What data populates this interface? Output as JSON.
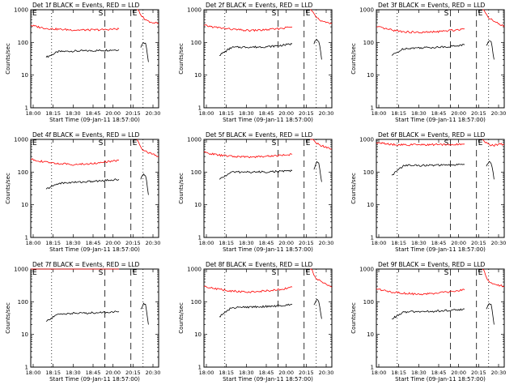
{
  "figure": {
    "xtick_labels": [
      "18:00",
      "18:15",
      "18:30",
      "18:45",
      "20:00",
      "20:15",
      "20:30"
    ],
    "xlabel": "Start Time (09-Jan-11 18:57:00)",
    "ylabel": "Counts/sec",
    "ytick_labels": [
      "1",
      "10",
      "100",
      "1000"
    ],
    "colors": {
      "events": "#000000",
      "lld": "#ff0000"
    }
  },
  "chart_data": [
    {
      "type": "line",
      "title": "Det 1f BLACK = Events, RED = LLD",
      "ylim": [
        1,
        1000
      ],
      "yscale": "log",
      "markers": {
        "E_left": "E",
        "S": "S",
        "E_right": "E"
      },
      "series": [
        {
          "name": "Events",
          "segments": [
            {
              "from": 0.12,
              "to": 0.69,
              "values": [
                35,
                52,
                54,
                55,
                56,
                58,
                60
              ]
            },
            {
              "from": 0.86,
              "to": 0.92,
              "values": [
                70,
                100,
                90,
                25
              ]
            }
          ]
        },
        {
          "name": "LLD",
          "segments": [
            {
              "from": 0.0,
              "to": 0.69,
              "values": [
                330,
                270,
                250,
                240,
                240,
                245,
                260
              ]
            },
            {
              "from": 0.83,
              "to": 1.0,
              "values": [
                1200,
                600,
                450,
                400,
                380
              ]
            }
          ]
        }
      ]
    },
    {
      "type": "line",
      "title": "Det 2f BLACK = Events, RED = LLD",
      "ylim": [
        1,
        1000
      ],
      "yscale": "log",
      "markers": {
        "E_left": "",
        "S": "S",
        "E_right": "E"
      },
      "series": [
        {
          "name": "Events",
          "segments": [
            {
              "from": 0.12,
              "to": 0.69,
              "values": [
                40,
                70,
                72,
                72,
                74,
                80,
                90
              ]
            },
            {
              "from": 0.86,
              "to": 0.92,
              "values": [
                90,
                130,
                110,
                30
              ]
            }
          ]
        },
        {
          "name": "LLD",
          "segments": [
            {
              "from": 0.0,
              "to": 0.69,
              "values": [
                330,
                280,
                250,
                230,
                240,
                260,
                300
              ]
            },
            {
              "from": 0.83,
              "to": 1.0,
              "values": [
                1200,
                600,
                450,
                400,
                380
              ]
            }
          ]
        }
      ]
    },
    {
      "type": "line",
      "title": "Det 3f BLACK = Events, RED = LLD",
      "ylim": [
        1,
        1000
      ],
      "yscale": "log",
      "markers": {
        "E_left": "",
        "S": "S",
        "E_right": "E"
      },
      "series": [
        {
          "name": "Events",
          "segments": [
            {
              "from": 0.12,
              "to": 0.69,
              "values": [
                40,
                65,
                68,
                70,
                72,
                76,
                85
              ]
            },
            {
              "from": 0.86,
              "to": 0.92,
              "values": [
                80,
                120,
                100,
                30
              ]
            }
          ]
        },
        {
          "name": "LLD",
          "segments": [
            {
              "from": 0.0,
              "to": 0.69,
              "values": [
                300,
                240,
                210,
                200,
                210,
                230,
                260
              ]
            },
            {
              "from": 0.83,
              "to": 1.0,
              "values": [
                1200,
                600,
                450,
                380,
                300
              ]
            }
          ]
        }
      ]
    },
    {
      "type": "line",
      "title": "Det 4f BLACK = Events, RED = LLD",
      "ylim": [
        1,
        1000
      ],
      "yscale": "log",
      "markers": {
        "E_left": "E",
        "S": "S",
        "E_right": "E"
      },
      "series": [
        {
          "name": "Events",
          "segments": [
            {
              "from": 0.12,
              "to": 0.69,
              "values": [
                30,
                45,
                48,
                50,
                52,
                56,
                60
              ]
            },
            {
              "from": 0.86,
              "to": 0.92,
              "values": [
                60,
                90,
                80,
                20
              ]
            }
          ]
        },
        {
          "name": "LLD",
          "segments": [
            {
              "from": 0.0,
              "to": 0.69,
              "values": [
                250,
                200,
                180,
                170,
                180,
                200,
                230
              ]
            },
            {
              "from": 0.83,
              "to": 1.0,
              "values": [
                1000,
                500,
                400,
                350,
                300
              ]
            }
          ]
        }
      ]
    },
    {
      "type": "line",
      "title": "Det 5f BLACK = Events, RED = LLD",
      "ylim": [
        1,
        1000
      ],
      "yscale": "log",
      "markers": {
        "E_left": "",
        "S": "S",
        "E_right": "E"
      },
      "series": [
        {
          "name": "Events",
          "segments": [
            {
              "from": 0.12,
              "to": 0.69,
              "values": [
                60,
                100,
                100,
                100,
                102,
                105,
                110
              ]
            },
            {
              "from": 0.86,
              "to": 0.92,
              "values": [
                120,
                200,
                180,
                50
              ]
            }
          ]
        },
        {
          "name": "LLD",
          "segments": [
            {
              "from": 0.0,
              "to": 0.69,
              "values": [
                400,
                330,
                300,
                290,
                300,
                320,
                350
              ]
            },
            {
              "from": 0.83,
              "to": 1.0,
              "values": [
                1200,
                800,
                650,
                580,
                500
              ]
            }
          ]
        }
      ]
    },
    {
      "type": "line",
      "title": "Det 6f BLACK = Events, RED = LLD",
      "ylim": [
        1,
        1000
      ],
      "yscale": "log",
      "markers": {
        "E_left": "",
        "S": "S",
        "E_right": "E"
      },
      "series": [
        {
          "name": "Events",
          "segments": [
            {
              "from": 0.12,
              "to": 0.69,
              "values": [
                80,
                160,
                160,
                160,
                162,
                165,
                170
              ]
            },
            {
              "from": 0.86,
              "to": 0.92,
              "values": [
                150,
                200,
                190,
                60
              ]
            }
          ]
        },
        {
          "name": "LLD",
          "segments": [
            {
              "from": 0.0,
              "to": 0.69,
              "values": [
                800,
                700,
                680,
                680,
                690,
                700,
                720
              ]
            },
            {
              "from": 0.83,
              "to": 1.0,
              "values": [
                1000,
                700,
                650,
                700,
                720
              ]
            }
          ]
        }
      ]
    },
    {
      "type": "line",
      "title": "Det 7f BLACK = Events, RED = LLD",
      "ylim": [
        1,
        1000
      ],
      "yscale": "log",
      "markers": {
        "E_left": "E",
        "S": "S",
        "E_right": "E"
      },
      "series": [
        {
          "name": "Events",
          "segments": [
            {
              "from": 0.12,
              "to": 0.69,
              "values": [
                25,
                42,
                44,
                45,
                46,
                48,
                50
              ]
            },
            {
              "from": 0.86,
              "to": 0.92,
              "values": [
                60,
                85,
                80,
                20
              ]
            }
          ]
        },
        {
          "name": "LLD",
          "segments": [
            {
              "from": 0.0,
              "to": 0.69,
              "values": [
                1150,
                1100,
                1100,
                1100,
                1100,
                1100,
                1100
              ]
            }
          ]
        }
      ]
    },
    {
      "type": "line",
      "title": "Det 8f BLACK = Events, RED = LLD",
      "ylim": [
        1,
        1000
      ],
      "yscale": "log",
      "markers": {
        "E_left": "",
        "S": "S",
        "E_right": "E"
      },
      "series": [
        {
          "name": "Events",
          "segments": [
            {
              "from": 0.12,
              "to": 0.69,
              "values": [
                35,
                65,
                68,
                70,
                72,
                75,
                85
              ]
            },
            {
              "from": 0.86,
              "to": 0.92,
              "values": [
                80,
                120,
                100,
                30
              ]
            }
          ]
        },
        {
          "name": "LLD",
          "segments": [
            {
              "from": 0.0,
              "to": 0.69,
              "values": [
                300,
                240,
                210,
                200,
                210,
                230,
                280
              ]
            },
            {
              "from": 0.83,
              "to": 1.0,
              "values": [
                1200,
                550,
                420,
                350,
                280
              ]
            }
          ]
        }
      ]
    },
    {
      "type": "line",
      "title": "Det 9f BLACK = Events, RED = LLD",
      "ylim": [
        1,
        1000
      ],
      "yscale": "log",
      "markers": {
        "E_left": "",
        "S": "S",
        "E_right": "E"
      },
      "series": [
        {
          "name": "Events",
          "segments": [
            {
              "from": 0.12,
              "to": 0.69,
              "values": [
                30,
                48,
                50,
                50,
                52,
                55,
                60
              ]
            },
            {
              "from": 0.86,
              "to": 0.92,
              "values": [
                60,
                90,
                80,
                20
              ]
            }
          ]
        },
        {
          "name": "LLD",
          "segments": [
            {
              "from": 0.0,
              "to": 0.69,
              "values": [
                250,
                200,
                180,
                170,
                180,
                200,
                230
              ]
            },
            {
              "from": 0.83,
              "to": 1.0,
              "values": [
                1200,
                450,
                350,
                320,
                300
              ]
            }
          ]
        }
      ]
    }
  ]
}
